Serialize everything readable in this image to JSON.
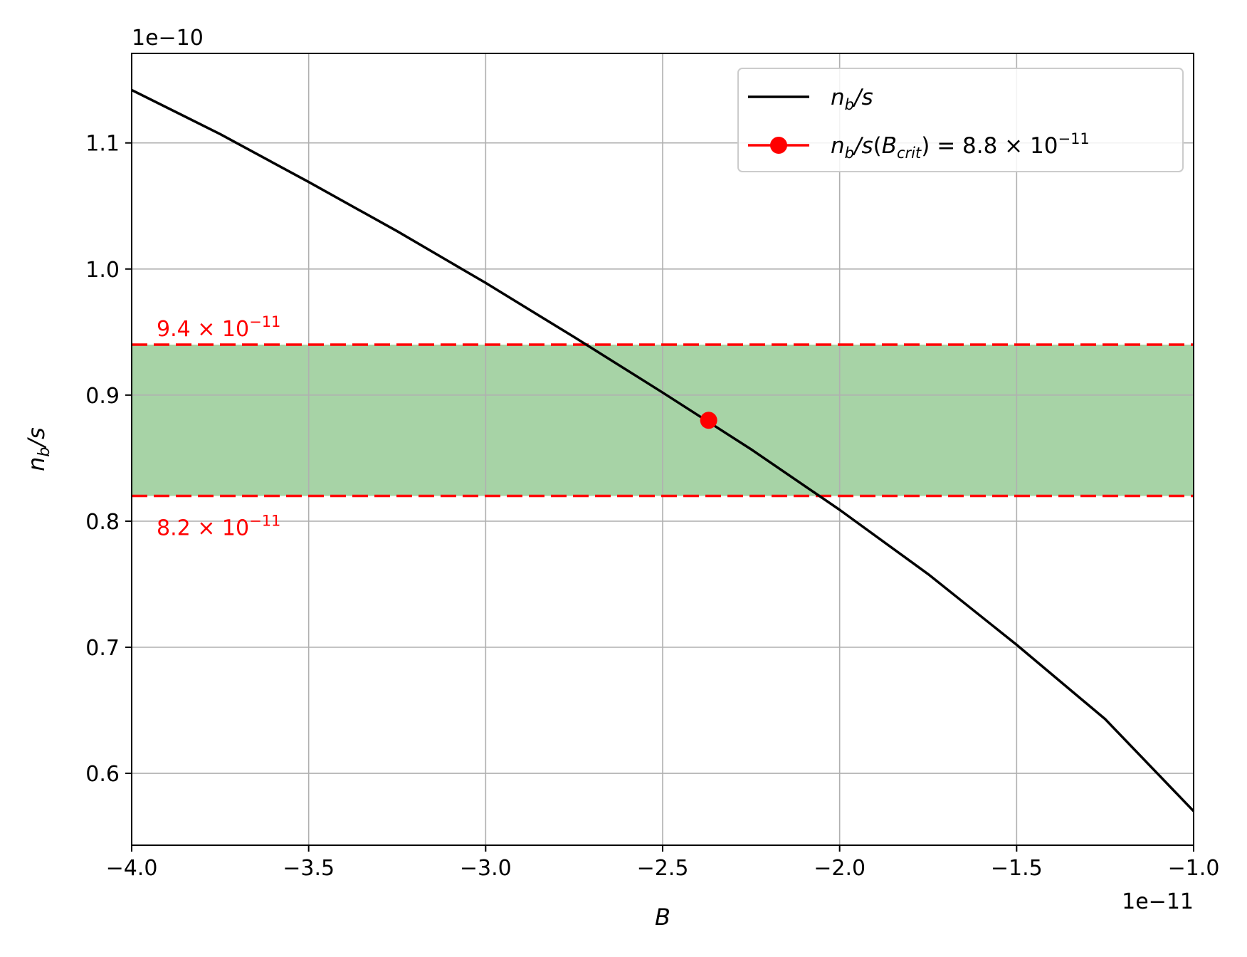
{
  "chart_data": {
    "type": "line",
    "xlabel": "B",
    "ylabel": "n_b/s",
    "x_offset_label": "1e−11",
    "y_offset_label": "1e−10",
    "xlim": [
      -4.0,
      -1.0
    ],
    "ylim": [
      0.543,
      1.171
    ],
    "x_ticks": [
      -4.0,
      -3.5,
      -3.0,
      -2.5,
      -2.0,
      -1.5,
      -1.0
    ],
    "x_tick_labels": [
      "−4.0",
      "−3.5",
      "−3.0",
      "−2.5",
      "−2.0",
      "−1.5",
      "−1.0"
    ],
    "y_ticks": [
      0.6,
      0.7,
      0.8,
      0.9,
      1.0,
      1.1
    ],
    "y_tick_labels": [
      "0.6",
      "0.7",
      "0.8",
      "0.9",
      "1.0",
      "1.1"
    ],
    "grid": true,
    "legend_placement": "top-right",
    "series": [
      {
        "name": "n_b/s",
        "color": "#000000",
        "x": [
          -4.0,
          -3.75,
          -3.5,
          -3.25,
          -3.0,
          -2.75,
          -2.5,
          -2.25,
          -2.0,
          -1.75,
          -1.5,
          -1.25,
          -1.0
        ],
        "y": [
          1.142,
          1.107,
          1.069,
          1.03,
          0.989,
          0.946,
          0.902,
          0.857,
          0.809,
          0.758,
          0.702,
          0.643,
          0.57
        ]
      }
    ],
    "marker": {
      "name": "n_b/s(B_crit) = 8.8 × 10^−11",
      "color": "#ff0000",
      "x": -2.37,
      "y": 0.88
    },
    "band": {
      "lower": 0.82,
      "upper": 0.94,
      "fill_color": "#a7d3a6",
      "line_color": "#ff0000",
      "upper_label": "9.4 × 10^−11",
      "lower_label": "8.2 × 10^−11"
    },
    "legend": [
      {
        "label": "n_b/s",
        "style": "line",
        "color": "#000000"
      },
      {
        "label": "n_b/s(B_crit) = 8.8 × 10^−11",
        "style": "line-marker",
        "color": "#ff0000"
      }
    ]
  }
}
